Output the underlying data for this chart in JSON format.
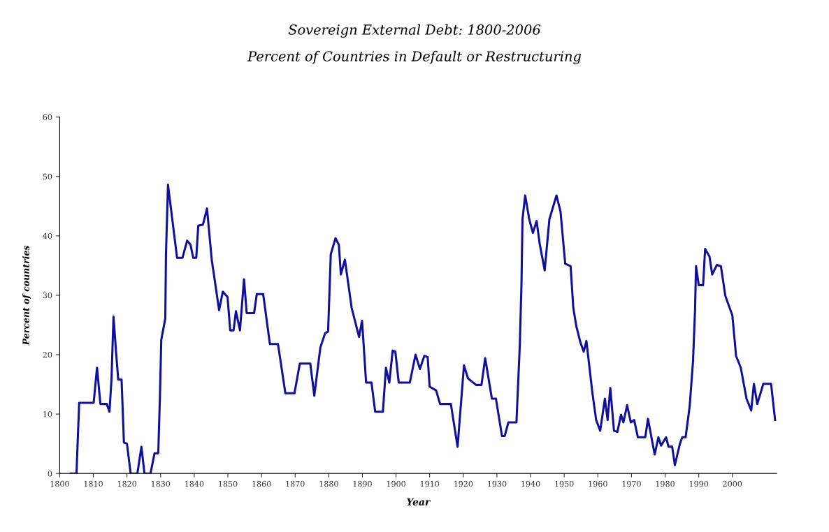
{
  "chart_data": {
    "type": "line",
    "title": "Sovereign External Debt: 1800-2006",
    "subtitle": "Percent of Countries in Default or Restructuring",
    "xlabel": "Year",
    "ylabel": "Percent of countries",
    "xlim": [
      1800,
      2013.2
    ],
    "ylim": [
      0,
      60
    ],
    "xticks": [
      1800,
      1810,
      1820,
      1830,
      1840,
      1850,
      1860,
      1870,
      1880,
      1890,
      1900,
      1910,
      1920,
      1930,
      1940,
      1950,
      1960,
      1970,
      1980,
      1990,
      2000
    ],
    "yticks": [
      0,
      10,
      20,
      30,
      40,
      50,
      60
    ],
    "grid": false,
    "marker": "none",
    "line_style": "solid",
    "series": [
      {
        "color": "#10109a",
        "x": [
          1803.3,
          1805.0,
          1805.4,
          1805.8,
          1810.1,
          1811.1,
          1812.1,
          1814.0,
          1814.8,
          1815.4,
          1816.0,
          1816.9,
          1817.4,
          1818.4,
          1819.1,
          1820.0,
          1821.1,
          1823.1,
          1824.3,
          1825.2,
          1827.0,
          1828.2,
          1829.3,
          1829.8,
          1830.2,
          1831.4,
          1831.6,
          1832.2,
          1834.9,
          1836.5,
          1837.9,
          1838.9,
          1839.7,
          1840.6,
          1841.2,
          1842.6,
          1843.8,
          1845.2,
          1847.4,
          1848.5,
          1849.9,
          1850.7,
          1851.7,
          1852.4,
          1853.6,
          1854.8,
          1855.6,
          1857.8,
          1858.6,
          1860.5,
          1862.5,
          1864.9,
          1867.1,
          1869.8,
          1871.4,
          1874.5,
          1875.7,
          1877.5,
          1878.9,
          1879.8,
          1880.6,
          1882.0,
          1883.0,
          1883.6,
          1884.8,
          1886.8,
          1889.0,
          1889.9,
          1891.1,
          1892.7,
          1893.8,
          1896.1,
          1897.0,
          1898.0,
          1899.0,
          1899.8,
          1900.8,
          1904.1,
          1905.8,
          1907.1,
          1908.4,
          1909.4,
          1910.0,
          1911.9,
          1913.1,
          1916.3,
          1918.3,
          1920.2,
          1921.4,
          1923.8,
          1925.4,
          1926.5,
          1928.5,
          1929.7,
          1931.5,
          1932.3,
          1933.4,
          1935.8,
          1936.8,
          1937.3,
          1937.6,
          1938.4,
          1939.6,
          1940.7,
          1941.8,
          1942.7,
          1944.2,
          1945.6,
          1947.7,
          1948.9,
          1950.3,
          1951.9,
          1952.7,
          1953.6,
          1954.8,
          1955.8,
          1956.6,
          1958.4,
          1959.5,
          1960.7,
          1962.1,
          1962.9,
          1963.7,
          1964.8,
          1965.8,
          1966.9,
          1967.6,
          1968.7,
          1969.8,
          1970.8,
          1971.9,
          1974.1,
          1974.9,
          1976.9,
          1978.0,
          1978.8,
          1980.3,
          1981.0,
          1982.1,
          1982.9,
          1984.4,
          1985.1,
          1986.1,
          1987.3,
          1988.3,
          1988.9,
          1989.2,
          1990.0,
          1991.3,
          1991.9,
          1993.2,
          1994.0,
          1995.4,
          1996.6,
          1997.9,
          2000.0,
          2001.1,
          2002.5,
          2004.2,
          2005.6,
          2006.4,
          2007.4,
          2009.2,
          2011.5,
          2012.7
        ],
        "values": [
          0,
          0,
          6.1,
          11.9,
          11.9,
          17.8,
          11.7,
          11.7,
          10.4,
          15.8,
          26.4,
          19.4,
          15.8,
          15.8,
          5.2,
          5.0,
          0,
          0,
          4.5,
          0,
          0,
          3.4,
          3.4,
          12.8,
          22.5,
          26.1,
          36.9,
          48.6,
          36.3,
          36.3,
          39.2,
          38.5,
          36.3,
          36.3,
          41.7,
          41.9,
          44.6,
          36.0,
          27.5,
          30.6,
          29.7,
          24.1,
          24.1,
          27.3,
          24.1,
          32.7,
          27.0,
          27.0,
          30.2,
          30.2,
          21.8,
          21.8,
          13.5,
          13.5,
          18.5,
          18.5,
          13.1,
          21.2,
          23.6,
          23.9,
          36.9,
          39.6,
          38.5,
          33.5,
          36.0,
          27.9,
          23.0,
          25.7,
          15.3,
          15.3,
          10.4,
          10.4,
          17.8,
          15.3,
          20.7,
          20.5,
          15.3,
          15.3,
          20.0,
          17.6,
          19.8,
          19.6,
          14.6,
          14.0,
          11.7,
          11.7,
          4.5,
          18.2,
          16.0,
          14.9,
          14.9,
          19.4,
          12.6,
          12.6,
          6.3,
          6.3,
          8.6,
          8.6,
          21.6,
          32.0,
          42.8,
          46.8,
          42.8,
          40.5,
          42.5,
          38.7,
          34.2,
          42.8,
          46.8,
          44.1,
          35.3,
          34.9,
          27.9,
          24.8,
          22.1,
          20.5,
          22.3,
          13.5,
          9.0,
          7.2,
          12.6,
          9.0,
          14.4,
          7.2,
          7.0,
          9.9,
          8.6,
          11.5,
          8.6,
          9.0,
          6.1,
          6.1,
          9.2,
          3.2,
          6.1,
          4.7,
          6.1,
          4.5,
          4.5,
          1.4,
          5.0,
          6.1,
          6.1,
          11.3,
          18.9,
          27.5,
          34.9,
          31.7,
          31.7,
          37.8,
          36.5,
          33.5,
          35.1,
          34.9,
          29.9,
          26.6,
          19.8,
          17.8,
          12.6,
          10.6,
          15.1,
          11.7,
          15.1,
          15.1,
          9.0
        ]
      }
    ]
  }
}
